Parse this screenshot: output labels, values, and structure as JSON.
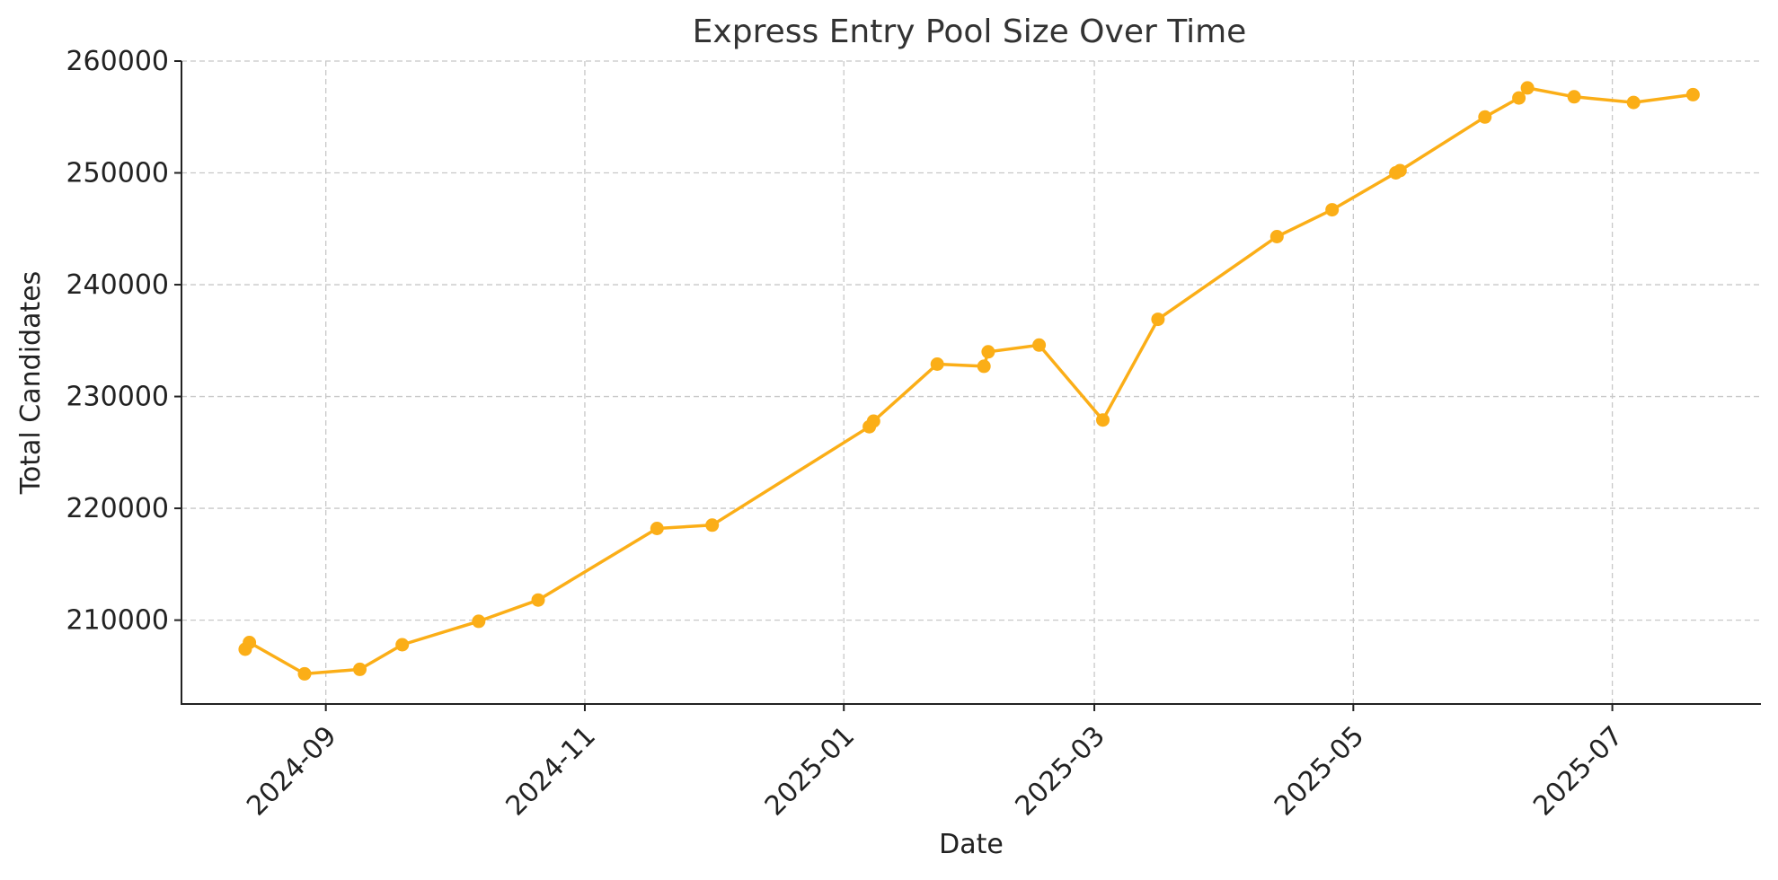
{
  "chart_data": {
    "type": "line",
    "title": "Express Entry Pool Size Over Time",
    "xlabel": "Date",
    "ylabel": "Total Candidates",
    "x_type": "date",
    "xlim": [
      "2024-07-29",
      "2025-08-05"
    ],
    "ylim": [
      202500,
      260000
    ],
    "x_ticks": [
      "2024-09-01",
      "2024-11-01",
      "2025-01-01",
      "2025-03-01",
      "2025-05-01",
      "2025-07-01"
    ],
    "x_tick_labels": [
      "2024-09",
      "2024-11",
      "2025-01",
      "2025-03",
      "2025-05",
      "2025-07"
    ],
    "y_ticks": [
      210000,
      220000,
      230000,
      240000,
      250000,
      260000
    ],
    "y_tick_labels": [
      "210000",
      "220000",
      "230000",
      "240000",
      "250000",
      "260000"
    ],
    "grid": true,
    "color": "#FBAE17",
    "series": [
      {
        "name": "",
        "x": [
          "2024-08-13",
          "2024-08-14",
          "2024-08-27",
          "2024-09-09",
          "2024-09-19",
          "2024-10-07",
          "2024-10-21",
          "2024-11-18",
          "2024-12-01",
          "2025-01-07",
          "2025-01-08",
          "2025-01-23",
          "2025-02-03",
          "2025-02-04",
          "2025-02-16",
          "2025-03-03",
          "2025-03-16",
          "2025-04-13",
          "2025-04-26",
          "2025-05-11",
          "2025-05-12",
          "2025-06-01",
          "2025-06-09",
          "2025-06-11",
          "2025-06-22",
          "2025-07-06",
          "2025-07-20"
        ],
        "y": [
          207400,
          208000,
          205200,
          205600,
          207800,
          209900,
          211800,
          218200,
          218500,
          227300,
          227800,
          232900,
          232700,
          234000,
          234600,
          227900,
          236900,
          244300,
          246700,
          250000,
          250200,
          255000,
          256700,
          257600,
          256800,
          256300,
          257000
        ]
      }
    ]
  }
}
